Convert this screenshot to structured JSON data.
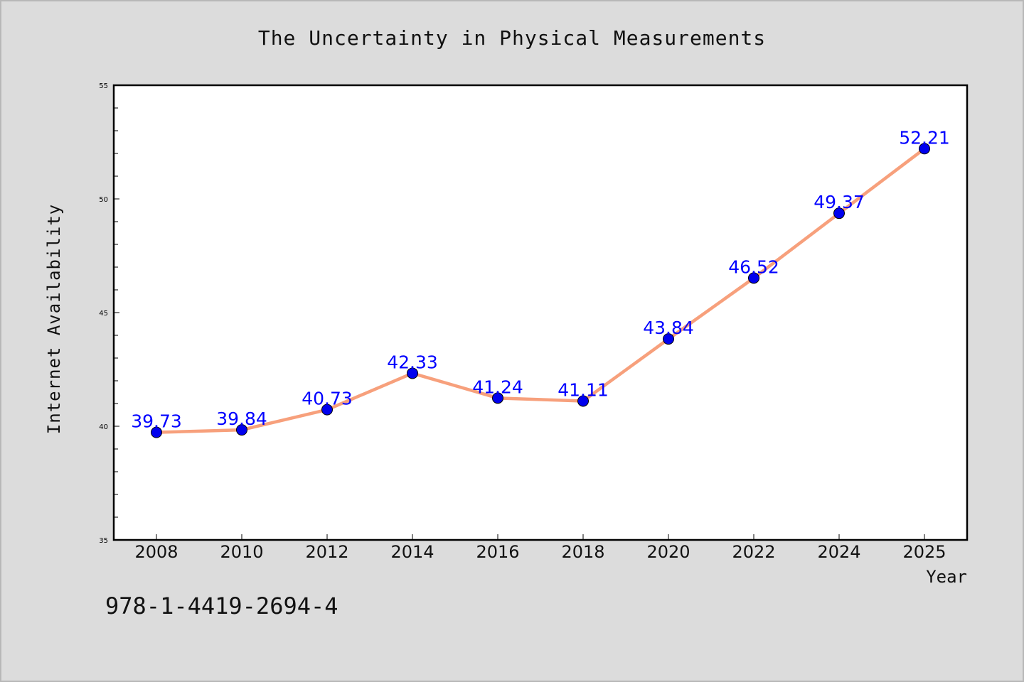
{
  "chart_data": {
    "type": "line",
    "title": "The Uncertainty in Physical Measurements",
    "xlabel": "Year",
    "ylabel": "Internet Availability",
    "categories": [
      "2008",
      "2010",
      "2012",
      "2014",
      "2016",
      "2018",
      "2020",
      "2022",
      "2024",
      "2025"
    ],
    "series": [
      {
        "values": [
          39.73,
          39.84,
          40.73,
          42.33,
          41.24,
          41.11,
          43.84,
          46.52,
          49.37,
          52.21
        ],
        "labels": [
          "39.73",
          "39.84",
          "40.73",
          "42.33",
          "41.24",
          "41.11",
          "43.84",
          "46.52",
          "49.37",
          "52.21"
        ]
      }
    ],
    "ylim": [
      35,
      55
    ],
    "yticks": [
      "35",
      "40",
      "45",
      "50",
      "55"
    ],
    "grid": false,
    "line_color": "#f7a07c",
    "marker_color": "#0000ee",
    "label_color": "#0000ff"
  },
  "footer": {
    "identifier": "978-1-4419-2694-4"
  }
}
